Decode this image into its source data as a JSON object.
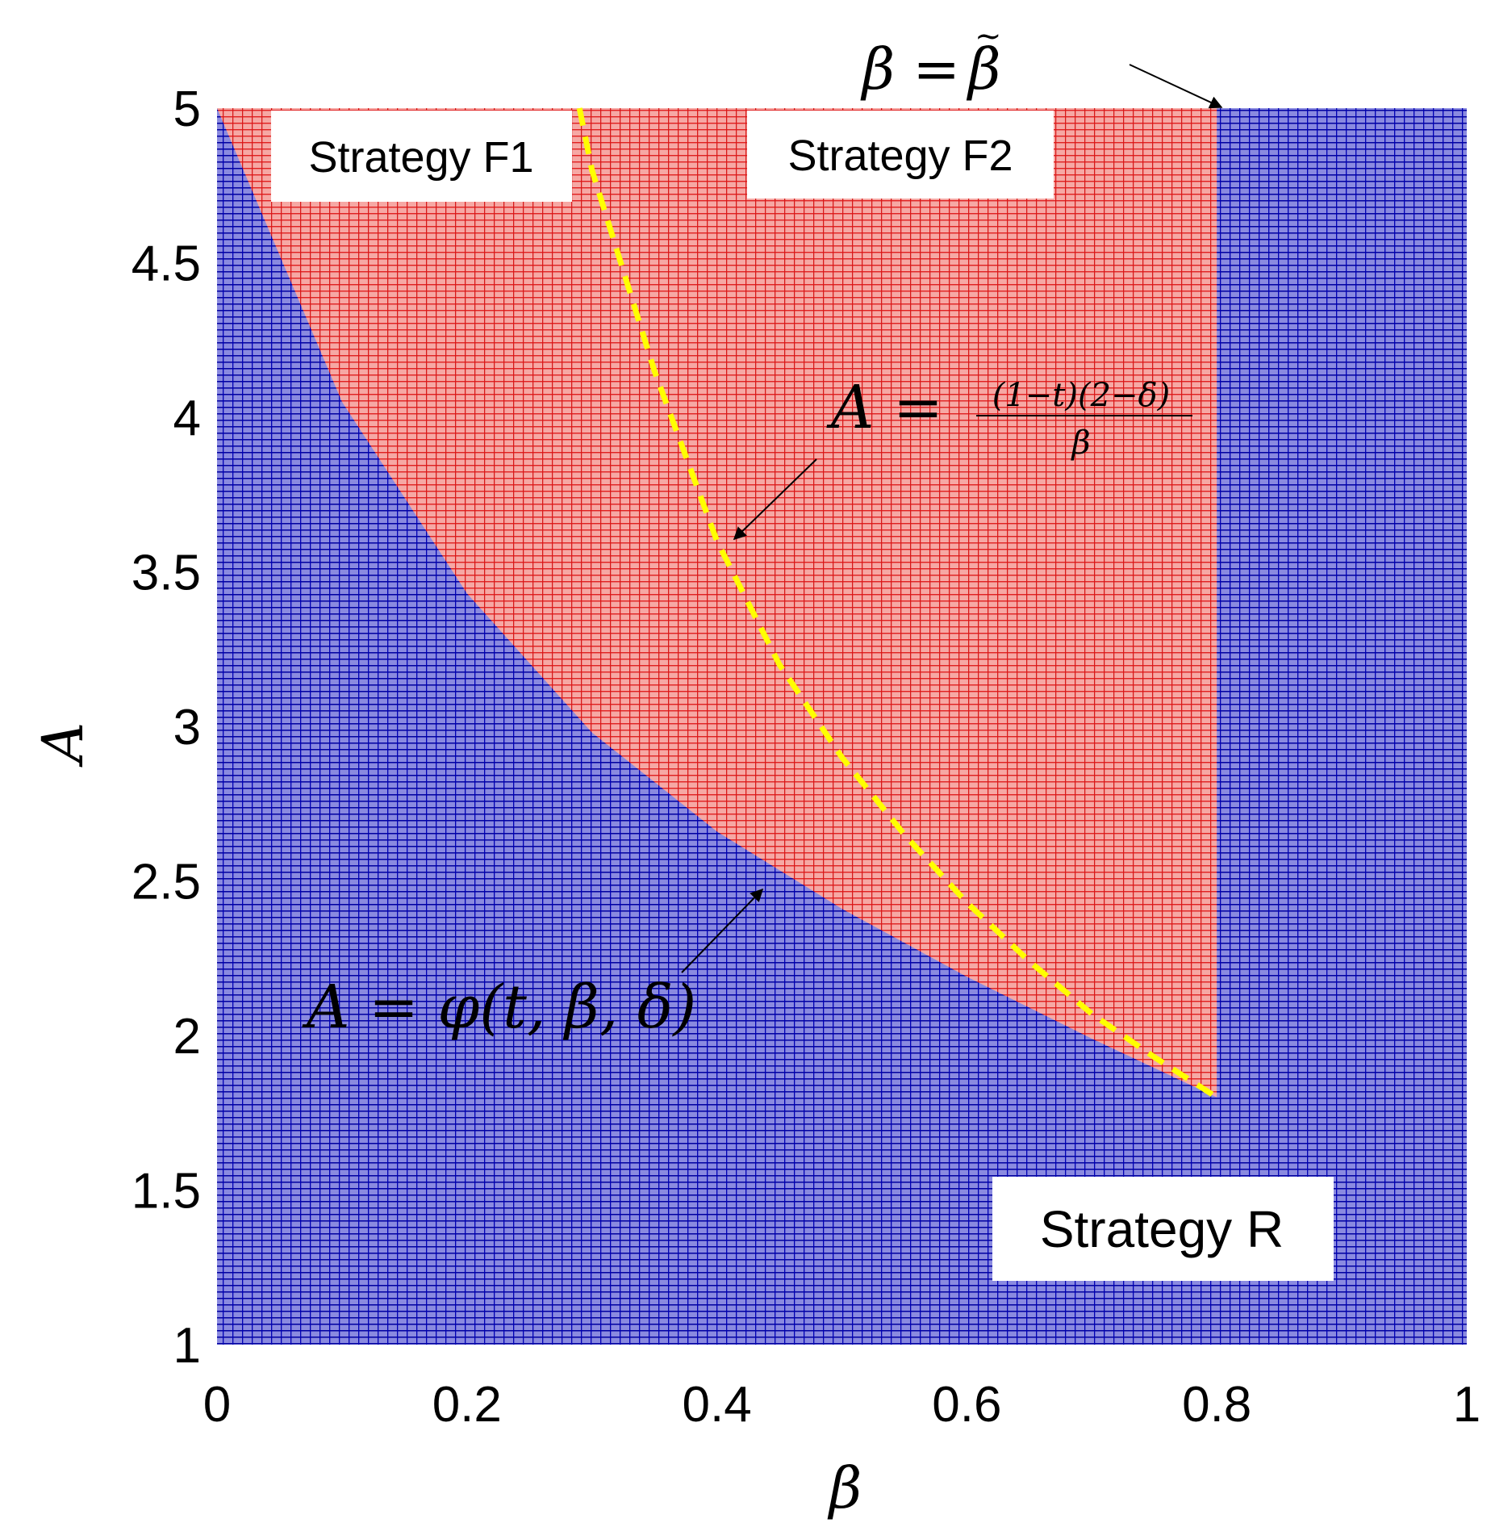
{
  "chart_data": {
    "type": "area",
    "xlabel": "β",
    "ylabel": "A",
    "xlim": [
      0,
      1
    ],
    "ylim": [
      1,
      5
    ],
    "x_ticks": [
      0,
      0.2,
      0.4,
      0.6,
      0.8,
      1
    ],
    "y_ticks": [
      1,
      1.5,
      2,
      2.5,
      3,
      3.5,
      4,
      4.5,
      5
    ],
    "x_tick_labels": [
      "0",
      "0.2",
      "0.4",
      "0.6",
      "0.8",
      "1"
    ],
    "y_tick_labels": [
      "1",
      "1.5",
      "2",
      "2.5",
      "3",
      "3.5",
      "4",
      "4.5",
      "5"
    ],
    "beta_tilde": 0.8,
    "regions": [
      {
        "label": "Strategy F1",
        "color": "#e8453c"
      },
      {
        "label": "Strategy F2",
        "color": "#e8453c"
      },
      {
        "label": "Strategy R",
        "color": "#1a1aa8"
      }
    ],
    "phi_curve": {
      "label": "A = φ(t, β, δ)",
      "x": [
        0.0,
        0.1,
        0.2,
        0.3,
        0.4,
        0.5,
        0.6,
        0.7,
        0.8
      ],
      "y": [
        5.0,
        4.05,
        3.43,
        2.98,
        2.66,
        2.41,
        2.19,
        1.99,
        1.8
      ]
    },
    "dashed_curve": {
      "label": "A = (1−t)(2−δ)/β",
      "numerator": "(1−t)(2−δ)",
      "denominator": "β",
      "color": "#ffff00",
      "x": [
        0.29,
        0.3,
        0.35,
        0.4,
        0.45,
        0.5,
        0.55,
        0.6,
        0.65,
        0.7,
        0.75,
        0.8
      ],
      "y": [
        5.0,
        4.8,
        4.15,
        3.6,
        3.2,
        2.9,
        2.65,
        2.43,
        2.24,
        2.07,
        1.93,
        1.8
      ]
    },
    "vertical_line_label": "β = β̃",
    "annotations": {
      "beta_eq": "β =",
      "beta_tilde_sym": "β",
      "tilde": "~",
      "frac_lhs": "A =",
      "phi_label": "A = φ(t, β, δ)"
    }
  }
}
